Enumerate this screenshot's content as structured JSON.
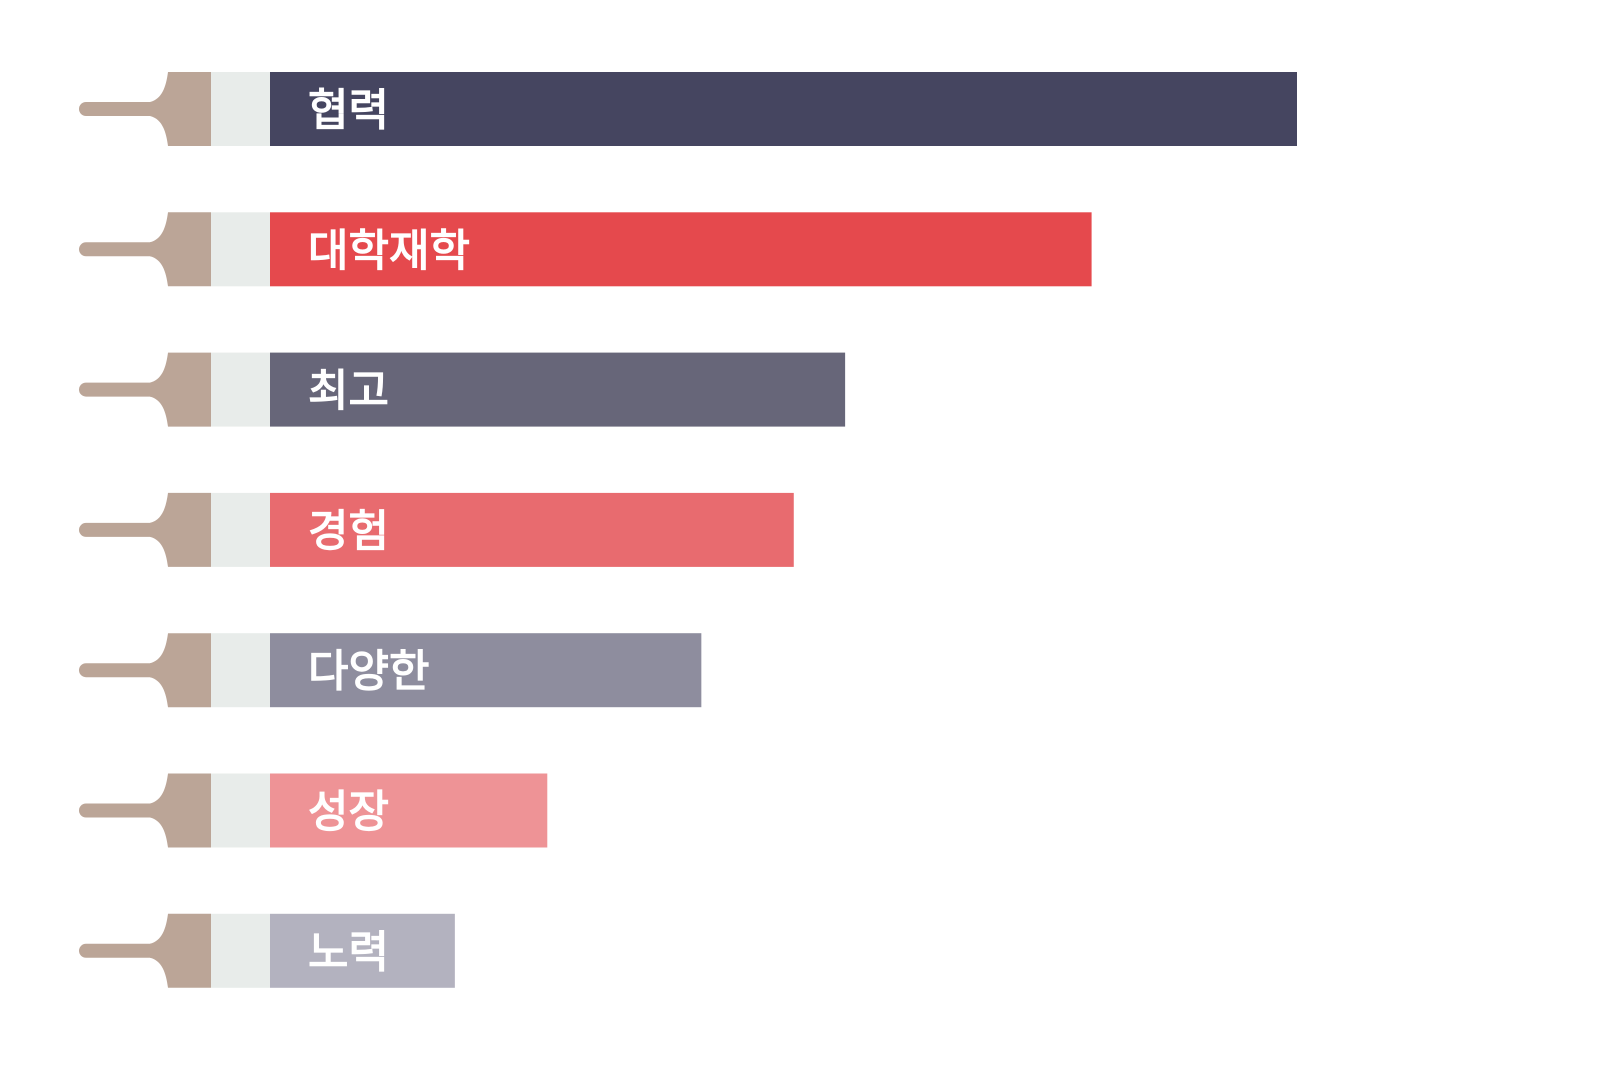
{
  "chart_data": {
    "type": "bar",
    "orientation": "horizontal",
    "categories": [
      "협력",
      "대학재학",
      "최고",
      "경험",
      "다양한",
      "성장",
      "노력"
    ],
    "values": [
      100,
      80,
      56,
      51,
      42,
      27,
      18
    ],
    "xlim": [
      0,
      100
    ],
    "title": "",
    "xlabel": "",
    "ylabel": "",
    "grid": false,
    "legend": "none",
    "colors": [
      "#454560",
      "#e5494d",
      "#676679",
      "#e86b6f",
      "#8e8d9e",
      "#ee9396",
      "#b3b2bf"
    ],
    "brush_colors": {
      "handle": "#bba597",
      "ferrule": "#e8ecea"
    }
  }
}
